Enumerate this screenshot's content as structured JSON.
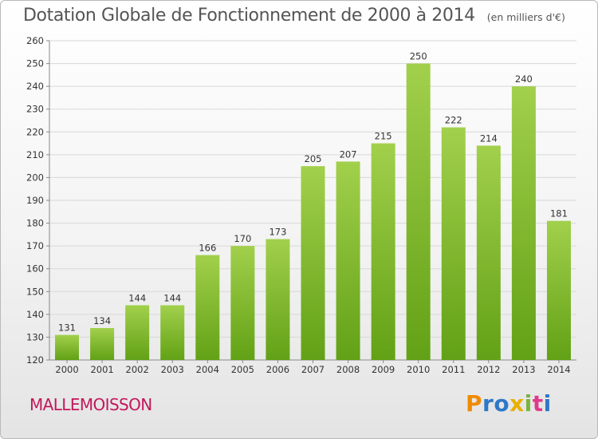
{
  "title": "Dotation Globale de Fonctionnement de 2000 à 2014",
  "unit_note": "(en milliers d'€)",
  "commune": "MALLEMOISSON",
  "logo": {
    "letters": [
      "P",
      "r",
      "o",
      "x",
      "i",
      "t",
      "i"
    ]
  },
  "colors": {
    "bar_light": "#a2d04c",
    "bar_dark": "#62a116",
    "axis_text": "#333333",
    "grid": "#d8d8d8",
    "commune": "#c2185b"
  },
  "chart_data": {
    "type": "bar",
    "title": "Dotation Globale de Fonctionnement de 2000 à 2014",
    "subtitle": "(en milliers d'€)",
    "categories": [
      "2000",
      "2001",
      "2002",
      "2003",
      "2004",
      "2005",
      "2006",
      "2007",
      "2008",
      "2009",
      "2010",
      "2011",
      "2012",
      "2013",
      "2014"
    ],
    "values": [
      131,
      134,
      144,
      144,
      166,
      170,
      173,
      205,
      207,
      215,
      250,
      222,
      214,
      240,
      181
    ],
    "ylim": [
      120,
      260
    ],
    "yticks": [
      120,
      130,
      140,
      150,
      160,
      170,
      180,
      190,
      200,
      210,
      220,
      230,
      240,
      250,
      260
    ],
    "grid": true,
    "xlabel": "",
    "ylabel": ""
  }
}
